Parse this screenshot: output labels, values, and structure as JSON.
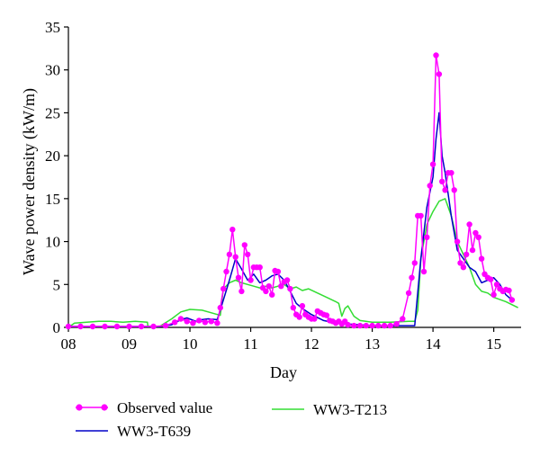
{
  "chart_data": {
    "type": "line",
    "title": "",
    "xlabel": "Day",
    "ylabel": "Wave power density (kW/m)",
    "xlim": [
      8,
      15.45
    ],
    "ylim": [
      0,
      35
    ],
    "x_ticks": [
      "08",
      "09",
      "10",
      "11",
      "12",
      "13",
      "14",
      "15"
    ],
    "y_ticks": [
      "0",
      "5",
      "10",
      "15",
      "20",
      "25",
      "30",
      "35"
    ],
    "grid": false,
    "legend": "bottom",
    "series": [
      {
        "name": "Observed value",
        "color": "#ff00ff",
        "marker": "circle",
        "x": [
          8.0,
          8.2,
          8.4,
          8.6,
          8.8,
          9.0,
          9.2,
          9.4,
          9.6,
          9.75,
          9.85,
          9.95,
          10.05,
          10.15,
          10.25,
          10.35,
          10.45,
          10.5,
          10.55,
          10.6,
          10.65,
          10.7,
          10.75,
          10.8,
          10.85,
          10.9,
          10.95,
          11.0,
          11.05,
          11.1,
          11.15,
          11.2,
          11.25,
          11.3,
          11.35,
          11.4,
          11.45,
          11.5,
          11.55,
          11.6,
          11.65,
          11.7,
          11.75,
          11.8,
          11.85,
          11.9,
          11.95,
          12.0,
          12.05,
          12.1,
          12.15,
          12.2,
          12.25,
          12.3,
          12.35,
          12.4,
          12.45,
          12.5,
          12.55,
          12.6,
          12.7,
          12.8,
          12.9,
          13.0,
          13.1,
          13.2,
          13.3,
          13.4,
          13.5,
          13.6,
          13.65,
          13.7,
          13.75,
          13.8,
          13.85,
          13.9,
          13.95,
          14.0,
          14.05,
          14.1,
          14.15,
          14.2,
          14.25,
          14.3,
          14.35,
          14.4,
          14.45,
          14.5,
          14.55,
          14.6,
          14.65,
          14.7,
          14.75,
          14.8,
          14.85,
          14.9,
          14.95,
          15.0,
          15.05,
          15.1,
          15.15,
          15.2,
          15.25,
          15.3
        ],
        "y": [
          0.1,
          0.1,
          0.1,
          0.1,
          0.1,
          0.1,
          0.1,
          0.1,
          0.2,
          0.6,
          1.0,
          0.7,
          0.5,
          0.8,
          0.6,
          0.7,
          0.5,
          2.3,
          4.5,
          6.5,
          8.5,
          11.4,
          8.2,
          5.8,
          4.2,
          9.6,
          8.5,
          5.5,
          7.0,
          7.0,
          7.0,
          4.6,
          4.2,
          4.8,
          3.8,
          6.6,
          6.5,
          4.8,
          5.3,
          5.5,
          4.5,
          2.3,
          1.5,
          1.2,
          2.5,
          1.5,
          1.2,
          1.0,
          1.0,
          1.9,
          1.7,
          1.5,
          1.4,
          0.8,
          0.7,
          0.5,
          0.7,
          0.4,
          0.7,
          0.3,
          0.2,
          0.2,
          0.2,
          0.2,
          0.2,
          0.2,
          0.2,
          0.4,
          1.0,
          4.0,
          5.8,
          7.5,
          13.0,
          13.0,
          6.5,
          10.5,
          16.5,
          19.0,
          31.7,
          29.5,
          17.0,
          16.0,
          18.0,
          18.0,
          16.0,
          10.0,
          7.5,
          7.0,
          8.5,
          12.0,
          9.0,
          11.0,
          10.5,
          8.0,
          6.2,
          5.8,
          5.6,
          3.8,
          5.0,
          4.5,
          4.2,
          4.4,
          4.3,
          3.2
        ]
      },
      {
        "name": "WW3-T639",
        "color": "#0000c8",
        "x": [
          8.0,
          9.5,
          9.7,
          9.85,
          9.95,
          10.1,
          10.2,
          10.3,
          10.45,
          10.55,
          10.65,
          10.75,
          10.85,
          10.95,
          11.05,
          11.15,
          11.25,
          11.35,
          11.45,
          11.55,
          11.65,
          11.75,
          11.85,
          12.0,
          12.2,
          12.4,
          12.6,
          12.8,
          13.0,
          13.2,
          13.5,
          13.7,
          13.8,
          13.9,
          14.0,
          14.05,
          14.1,
          14.15,
          14.2,
          14.3,
          14.4,
          14.5,
          14.6,
          14.7,
          14.8,
          14.9,
          15.0,
          15.1,
          15.2,
          15.3
        ],
        "y": [
          0.1,
          0.1,
          0.3,
          0.9,
          1.1,
          0.7,
          0.9,
          1.0,
          0.9,
          3.2,
          5.5,
          8.0,
          6.8,
          5.5,
          6.2,
          5.2,
          5.5,
          6.0,
          6.2,
          5.5,
          4.2,
          2.8,
          2.2,
          1.5,
          0.8,
          0.5,
          0.4,
          0.3,
          0.2,
          0.2,
          0.2,
          0.2,
          8.0,
          14.0,
          17.5,
          22.0,
          25.0,
          20.0,
          18.0,
          13.0,
          9.0,
          8.0,
          7.0,
          6.5,
          5.2,
          5.5,
          5.8,
          5.0,
          3.8,
          3.2
        ]
      },
      {
        "name": "WW3-T213",
        "color": "#33dd33",
        "x": [
          8.0,
          8.1,
          8.3,
          8.5,
          8.7,
          8.9,
          9.1,
          9.3,
          9.31,
          9.5,
          9.7,
          9.85,
          10.0,
          10.2,
          10.4,
          10.5,
          10.55,
          10.65,
          10.75,
          10.85,
          10.95,
          11.05,
          11.15,
          11.25,
          11.35,
          11.45,
          11.55,
          11.65,
          11.75,
          11.85,
          11.95,
          12.1,
          12.25,
          12.4,
          12.45,
          12.5,
          12.55,
          12.6,
          12.7,
          12.8,
          13.0,
          13.3,
          13.6,
          13.7,
          13.75,
          13.8,
          13.9,
          14.0,
          14.1,
          14.2,
          14.3,
          14.4,
          14.5,
          14.6,
          14.7,
          14.8,
          14.9,
          15.0,
          15.2,
          15.4
        ],
        "y": [
          0.0,
          0.5,
          0.6,
          0.7,
          0.7,
          0.6,
          0.7,
          0.6,
          0.1,
          0.1,
          1.0,
          1.8,
          2.1,
          2.0,
          1.6,
          1.4,
          4.5,
          5.2,
          5.5,
          5.2,
          5.0,
          4.8,
          4.6,
          4.8,
          4.6,
          4.8,
          5.0,
          4.5,
          4.7,
          4.3,
          4.5,
          4.0,
          3.5,
          3.0,
          2.8,
          1.3,
          2.2,
          2.5,
          1.3,
          0.8,
          0.6,
          0.6,
          0.7,
          0.7,
          2.0,
          8.0,
          12.0,
          13.5,
          14.7,
          15.0,
          13.0,
          10.0,
          8.5,
          7.0,
          5.0,
          4.2,
          4.0,
          3.5,
          3.0,
          2.3
        ]
      }
    ]
  }
}
